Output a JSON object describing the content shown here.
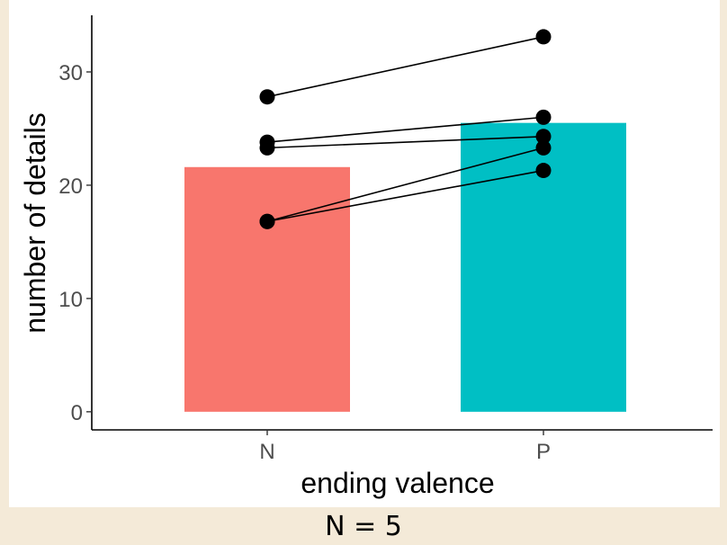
{
  "chart_data": {
    "type": "bar",
    "categories": [
      "N",
      "P"
    ],
    "values": [
      21.6,
      25.5
    ],
    "bar_colors": [
      "#f8766d",
      "#00bfc4"
    ],
    "paired_points": [
      [
        27.8,
        33.1
      ],
      [
        23.8,
        26.0
      ],
      [
        23.3,
        24.3
      ],
      [
        16.8,
        23.3
      ],
      [
        16.8,
        21.3
      ]
    ],
    "xlabel": "ending valence",
    "ylabel": "number of details",
    "ylim": [
      -1.6,
      35
    ],
    "yticks": [
      0,
      10,
      20,
      30
    ],
    "grid": false
  },
  "footer_text": "N = 5",
  "colors": {
    "background": "#f4ead8",
    "panel": "#ffffff",
    "points": "#000000"
  }
}
